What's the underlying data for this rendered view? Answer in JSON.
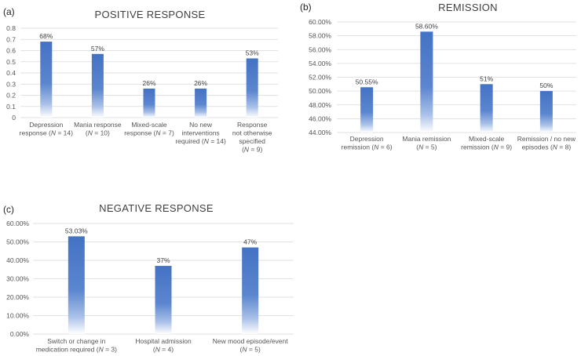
{
  "chart_data": [
    {
      "panel": "(a)",
      "type": "bar",
      "title": "POSITIVE RESPONSE",
      "ylim": [
        0,
        0.8
      ],
      "yticks": [
        "0",
        "0.1",
        "0.2",
        "0.3",
        "0.4",
        "0.5",
        "0.6",
        "0.7",
        "0.8"
      ],
      "ytick_values": [
        0,
        0.1,
        0.2,
        0.3,
        0.4,
        0.5,
        0.6,
        0.7,
        0.8
      ],
      "categories": [
        [
          "Depression",
          "response (N = 14)"
        ],
        [
          "Mania response",
          "(N = 10)"
        ],
        [
          "Mixed-scale",
          "response (N = 7)"
        ],
        [
          "No new",
          "interventions",
          "required (N = 14)"
        ],
        [
          "Response",
          "not otherwise",
          "specified",
          "(N = 9)"
        ]
      ],
      "values": [
        0.68,
        0.57,
        0.26,
        0.26,
        0.53
      ],
      "data_labels": [
        "68%",
        "57%",
        "26%",
        "26%",
        "53%"
      ]
    },
    {
      "panel": "(b)",
      "type": "bar",
      "title": "REMISSION",
      "ylim": [
        44,
        60
      ],
      "yticks": [
        "44.00%",
        "46.00%",
        "48.00%",
        "50.00%",
        "52.00%",
        "54.00%",
        "56.00%",
        "58.00%",
        "60.00%"
      ],
      "ytick_values": [
        44,
        46,
        48,
        50,
        52,
        54,
        56,
        58,
        60
      ],
      "categories": [
        [
          "Depression",
          "remission (N = 6)"
        ],
        [
          "Mania remission",
          "(N = 5)"
        ],
        [
          "Mixed-scale",
          "remission (N = 9)"
        ],
        [
          "Remission / no new",
          "episodes (N = 8)"
        ]
      ],
      "values": [
        50.55,
        58.6,
        51,
        50
      ],
      "data_labels": [
        "50.55%",
        "58.60%",
        "51%",
        "50%"
      ]
    },
    {
      "panel": "(c)",
      "type": "bar",
      "title": "NEGATIVE RESPONSE",
      "ylim": [
        0,
        60
      ],
      "yticks": [
        "0.00%",
        "10.00%",
        "20.00%",
        "30.00%",
        "40.00%",
        "50.00%",
        "60.00%"
      ],
      "ytick_values": [
        0,
        10,
        20,
        30,
        40,
        50,
        60
      ],
      "categories": [
        [
          "Switch or change in",
          "medication required (N = 3)"
        ],
        [
          "Hospital admission",
          "(N = 4)"
        ],
        [
          "New mood episode/event",
          "(N = 5)"
        ]
      ],
      "values": [
        53.03,
        37,
        47
      ],
      "data_labels": [
        "53.03%",
        "37%",
        "47%"
      ]
    }
  ],
  "colors": {
    "bar_top": "#4472c4",
    "bar_bottom": "#ffffff",
    "grid": "#d9d9d9",
    "text": "#404040"
  }
}
